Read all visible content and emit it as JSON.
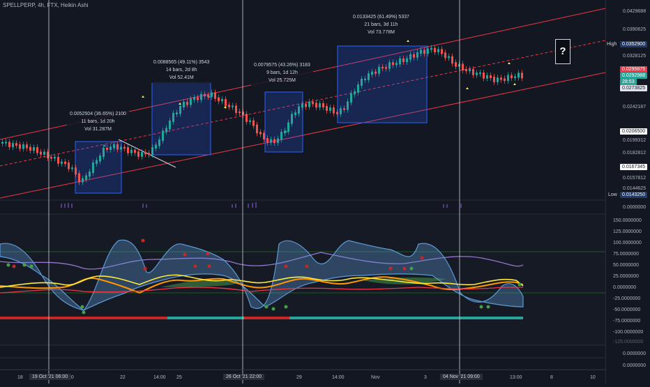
{
  "header": {
    "symbol_title": "SPELLPERP, 4h, FTX, Heikin Ashi"
  },
  "price_axis": {
    "labels": [
      "0.0429688",
      "0.0390625",
      "0.0328125",
      "0.0242187",
      "0.0199312",
      "0.0182812",
      "0.0157812",
      "0.0144625"
    ],
    "high_label": "High",
    "high_value": "0.0352900",
    "current_price": "0.0295875",
    "current_price_alt": "0.0292988",
    "countdown": "28:53",
    "level_a": "0.0273825",
    "level_b": "0.0206500",
    "level_c": "0.0167345",
    "low_label": "Low",
    "low_value": "0.0143250",
    "vol_zero": "0.0000000"
  },
  "osc_axis": {
    "labels": [
      "150.0000000",
      "125.0000000",
      "100.0000000",
      "75.0000000",
      "50.0000000",
      "25.0000000",
      "0.0000000",
      "-25.0000000",
      "-50.0000000",
      "-75.0000000",
      "-100.0000000",
      "-125.0000000"
    ]
  },
  "lower_axis": {
    "labels": [
      "0.0000000",
      "0.0000000"
    ]
  },
  "annotations": [
    {
      "line1": "0.0052504 (36.65%) 2100",
      "line2": "11 bars, 1d 20h",
      "line3": "Vol 31.287M"
    },
    {
      "line1": "0.0088565 (49.11%) 3543",
      "line2": "14 bars, 2d 8h",
      "line3": "Vol 52.41M"
    },
    {
      "line1": "0.0079575 (43.26%) 3183",
      "line2": "9 bars, 1d 12h",
      "line3": "Vol 25.725M"
    },
    {
      "line1": "0.0133425 (61.49%) 5337",
      "line2": "21 bars, 3d 11h",
      "line3": "Vol 73.778M"
    }
  ],
  "question_mark": "?",
  "time_axis": {
    "ticks": [
      "18",
      "20",
      "22",
      "14:00",
      "25",
      "29",
      "14:00",
      "Nov",
      "3",
      "13:00",
      "8",
      "10"
    ],
    "highlighted": [
      "19 Oct '21  06:00",
      "26 Oct '21  22:00",
      "04 Nov '21  09:00"
    ]
  },
  "colors": {
    "up": "#26a69a",
    "down": "#ef5350",
    "box": "#2962ff",
    "channel": "#f23645",
    "bg": "#131722"
  }
}
